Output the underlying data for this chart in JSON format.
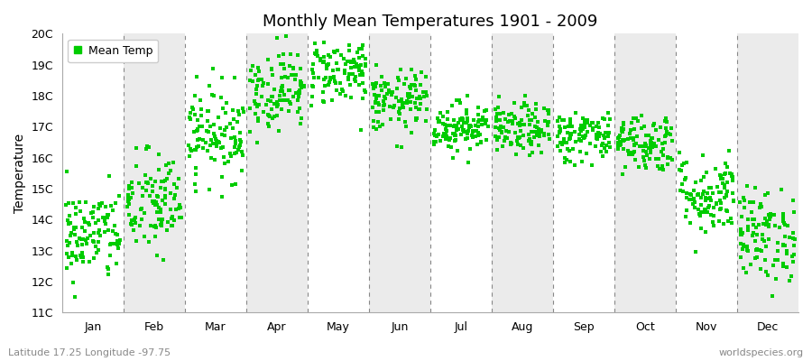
{
  "title": "Monthly Mean Temperatures 1901 - 2009",
  "ylabel": "Temperature",
  "xlabel_left": "Latitude 17.25 Longitude -97.75",
  "xlabel_right": "worldspecies.org",
  "legend_label": "Mean Temp",
  "marker_color": "#00CC00",
  "background_colors": [
    "#ffffff",
    "#ebebeb"
  ],
  "ylim": [
    11,
    20
  ],
  "ytick_labels": [
    "11C",
    "12C",
    "13C",
    "14C",
    "15C",
    "16C",
    "17C",
    "18C",
    "19C",
    "20C"
  ],
  "months": [
    "Jan",
    "Feb",
    "Mar",
    "Apr",
    "May",
    "Jun",
    "Jul",
    "Aug",
    "Sep",
    "Oct",
    "Nov",
    "Dec"
  ],
  "years": 109,
  "mean_temps": [
    13.5,
    14.5,
    16.8,
    18.2,
    18.8,
    17.8,
    17.0,
    16.9,
    16.7,
    16.5,
    14.8,
    13.5
  ],
  "std_temps": [
    0.75,
    0.85,
    0.75,
    0.65,
    0.55,
    0.5,
    0.4,
    0.42,
    0.42,
    0.48,
    0.65,
    0.75
  ],
  "seed": 42
}
